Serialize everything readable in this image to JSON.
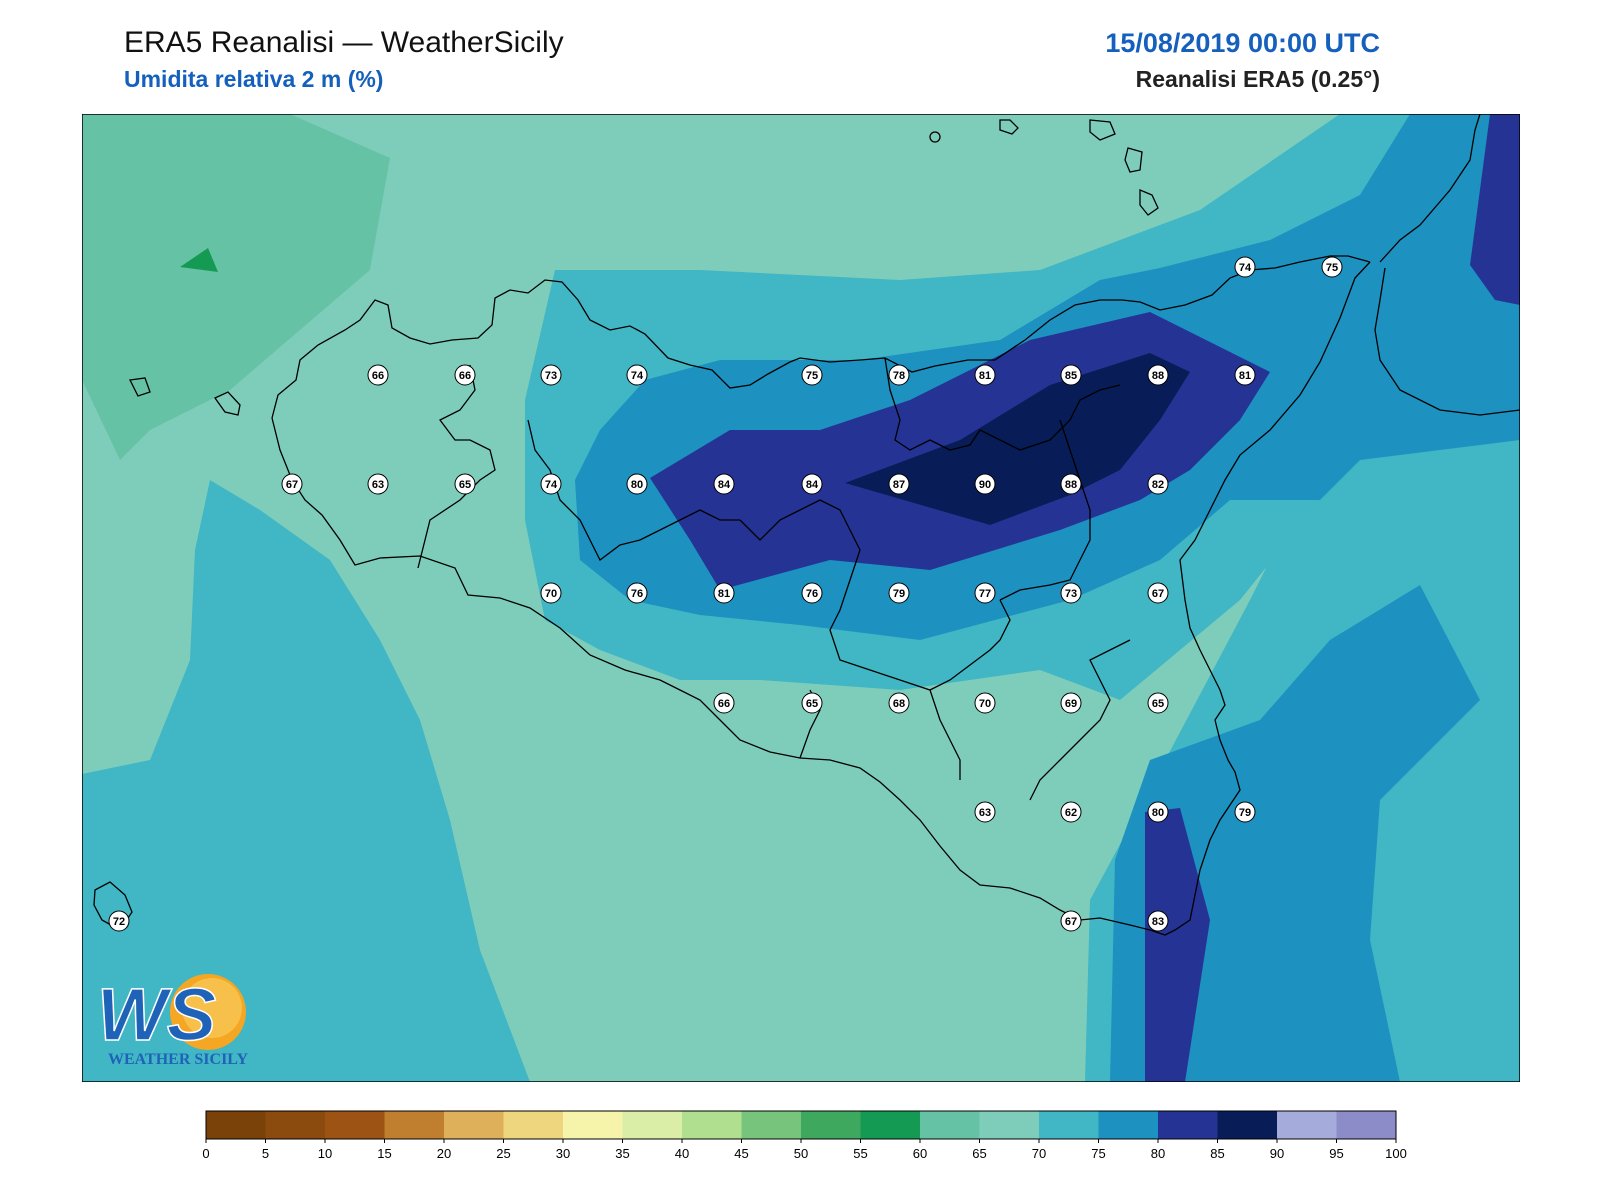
{
  "header": {
    "title": "ERA5 Reanalisi — WeatherSicily",
    "subtitle": "Umidita relativa 2 m (%)",
    "datetime": "15/08/2019 00:00 UTC",
    "source": "Reanalisi ERA5 (0.25°)"
  },
  "logo": {
    "letters": "WS",
    "text": "WEATHER SICILY"
  },
  "station_values": [
    {
      "id": "r1-1",
      "value": "66"
    },
    {
      "id": "r1-2",
      "value": "66"
    },
    {
      "id": "r1-3",
      "value": "73"
    },
    {
      "id": "r1-4",
      "value": "74"
    },
    {
      "id": "r1-5",
      "value": "75"
    },
    {
      "id": "r1-6",
      "value": "78"
    },
    {
      "id": "r1-7",
      "value": "81"
    },
    {
      "id": "r1-8",
      "value": "85"
    },
    {
      "id": "r1-9",
      "value": "88"
    },
    {
      "id": "r1-10",
      "value": "81"
    },
    {
      "id": "r2-1",
      "value": "67"
    },
    {
      "id": "r2-2",
      "value": "63"
    },
    {
      "id": "r2-3",
      "value": "65"
    },
    {
      "id": "r2-4",
      "value": "74"
    },
    {
      "id": "r2-5",
      "value": "80"
    },
    {
      "id": "r2-6",
      "value": "84"
    },
    {
      "id": "r2-7",
      "value": "84"
    },
    {
      "id": "r2-8",
      "value": "87"
    },
    {
      "id": "r2-9",
      "value": "90"
    },
    {
      "id": "r2-10",
      "value": "88"
    },
    {
      "id": "r2-11",
      "value": "82"
    },
    {
      "id": "r3-1",
      "value": "70"
    },
    {
      "id": "r3-2",
      "value": "76"
    },
    {
      "id": "r3-3",
      "value": "81"
    },
    {
      "id": "r3-4",
      "value": "76"
    },
    {
      "id": "r3-5",
      "value": "79"
    },
    {
      "id": "r3-6",
      "value": "77"
    },
    {
      "id": "r3-7",
      "value": "73"
    },
    {
      "id": "r3-8",
      "value": "67"
    },
    {
      "id": "r4-1",
      "value": "66"
    },
    {
      "id": "r4-2",
      "value": "65"
    },
    {
      "id": "r4-3",
      "value": "68"
    },
    {
      "id": "r4-4",
      "value": "70"
    },
    {
      "id": "r4-5",
      "value": "69"
    },
    {
      "id": "r4-6",
      "value": "65"
    },
    {
      "id": "r5-1",
      "value": "63"
    },
    {
      "id": "r5-2",
      "value": "62"
    },
    {
      "id": "r5-3",
      "value": "80"
    },
    {
      "id": "r5-4",
      "value": "79"
    },
    {
      "id": "r6-1",
      "value": "67"
    },
    {
      "id": "r6-2",
      "value": "83"
    },
    {
      "id": "ne-1",
      "value": "74"
    },
    {
      "id": "ne-2",
      "value": "75"
    },
    {
      "id": "pant",
      "value": "72"
    }
  ],
  "colorbar": {
    "ticks": [
      "0",
      "5",
      "10",
      "15",
      "20",
      "25",
      "30",
      "35",
      "40",
      "45",
      "50",
      "55",
      "60",
      "65",
      "70",
      "75",
      "80",
      "85",
      "90",
      "95",
      "100"
    ],
    "colors": [
      "#7a4208",
      "#8b4a0e",
      "#9c5313",
      "#c07f2e",
      "#deb05a",
      "#eed67e",
      "#f6f4ab",
      "#dbeea8",
      "#b0df8f",
      "#77c47c",
      "#3ea85e",
      "#159a54",
      "#66c2a5",
      "#7ecdbb",
      "#41b6c4",
      "#1d91c0",
      "#253494",
      "#081d58",
      "#a5acdc",
      "#8c8cc8"
    ]
  },
  "colors": {
    "rh65": "#7ecdbb",
    "rh60": "#66c2a5",
    "rh55": "#159a54",
    "rh70": "#41b6c4",
    "rh75": "#1d91c0",
    "rh80": "#253494",
    "rh85": "#081d58",
    "title_blue": "#1560bd"
  }
}
